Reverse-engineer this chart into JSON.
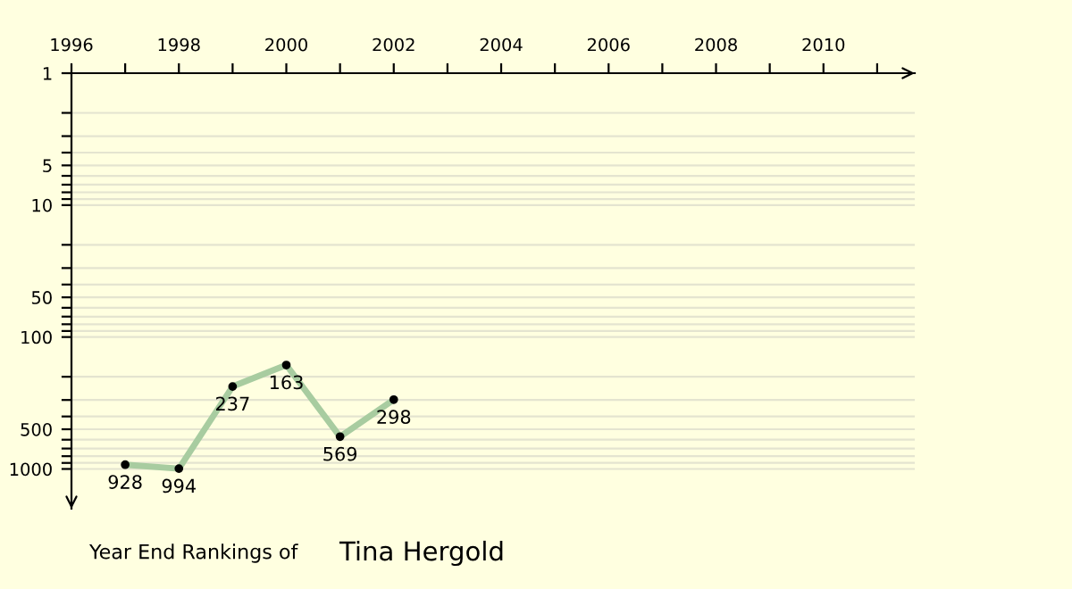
{
  "chart_data": {
    "type": "line",
    "title": "Year End Rankings of",
    "subtitle": "Tina Hergold",
    "x": [
      1997,
      1998,
      1999,
      2000,
      2001,
      2002
    ],
    "series": [
      {
        "color": "#a8cca0",
        "values": [
          928,
          994,
          237,
          163,
          569,
          298
        ]
      }
    ],
    "data_labels": true,
    "marker": "circle",
    "line_style": "solid",
    "log": true,
    "grid": "y",
    "legend": false,
    "xlim": [
      1996,
      2011.7
    ],
    "xticks": [
      1996,
      {
        "value": 1997,
        "label": null
      },
      1998,
      {
        "value": 1999,
        "label": null
      },
      2000,
      {
        "value": 2001,
        "label": null
      },
      2002,
      {
        "value": 2003,
        "label": null
      },
      2004,
      {
        "value": 2005,
        "label": null
      },
      2006,
      {
        "value": 2007,
        "label": null
      },
      2008,
      {
        "value": 2009,
        "label": null
      },
      2010,
      {
        "value": 2011,
        "label": null
      }
    ],
    "ylim": [
      2000,
      1
    ],
    "yticks": [
      1,
      {
        "value": 2,
        "label": null
      },
      {
        "value": 3,
        "label": null
      },
      {
        "value": 4,
        "label": null
      },
      5,
      {
        "value": 6,
        "label": null
      },
      {
        "value": 7,
        "label": null
      },
      {
        "value": 8,
        "label": null
      },
      {
        "value": 9,
        "label": null
      },
      10,
      {
        "value": 20,
        "label": null
      },
      {
        "value": 30,
        "label": null
      },
      {
        "value": 40,
        "label": null
      },
      50,
      {
        "value": 60,
        "label": null
      },
      {
        "value": 70,
        "label": null
      },
      {
        "value": 80,
        "label": null
      },
      {
        "value": 90,
        "label": null
      },
      100,
      {
        "value": 200,
        "label": null
      },
      {
        "value": 300,
        "label": null
      },
      {
        "value": 400,
        "label": null
      },
      500,
      {
        "value": 600,
        "label": null
      },
      {
        "value": 700,
        "label": null
      },
      {
        "value": 800,
        "label": null
      },
      {
        "value": 900,
        "label": null
      },
      1000
    ]
  }
}
